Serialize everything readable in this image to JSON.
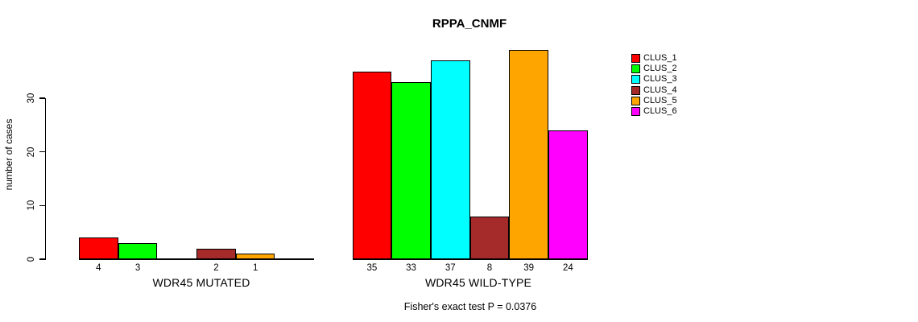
{
  "chart_data": {
    "type": "bar",
    "title": "RPPA_CNMF",
    "ylabel": "number of cases",
    "yticks": [
      "0",
      "10",
      "20",
      "30"
    ],
    "ylim": [
      0,
      40
    ],
    "grid": false,
    "categories": [
      "CLUS_1",
      "CLUS_2",
      "CLUS_3",
      "CLUS_4",
      "CLUS_5",
      "CLUS_6"
    ],
    "colors": [
      "#FF0000",
      "#00FF00",
      "#00FFFF",
      "#A52A2A",
      "#FFA500",
      "#FF00FF"
    ],
    "groups": [
      {
        "label": "WDR45 MUTATED",
        "values": [
          4,
          3,
          0,
          2,
          1,
          0
        ],
        "bar_labels": [
          "4",
          "3",
          "",
          "2",
          "1",
          ""
        ]
      },
      {
        "label": "WDR45 WILD-TYPE",
        "values": [
          35,
          33,
          37,
          8,
          39,
          24
        ],
        "bar_labels": [
          "35",
          "33",
          "37",
          "8",
          "39",
          "24"
        ]
      }
    ],
    "legend": {
      "position": "right",
      "entries": [
        "CLUS_1",
        "CLUS_2",
        "CLUS_3",
        "CLUS_4",
        "CLUS_5",
        "CLUS_6"
      ]
    },
    "annotation": "Fisher's exact test P = 0.0376"
  }
}
